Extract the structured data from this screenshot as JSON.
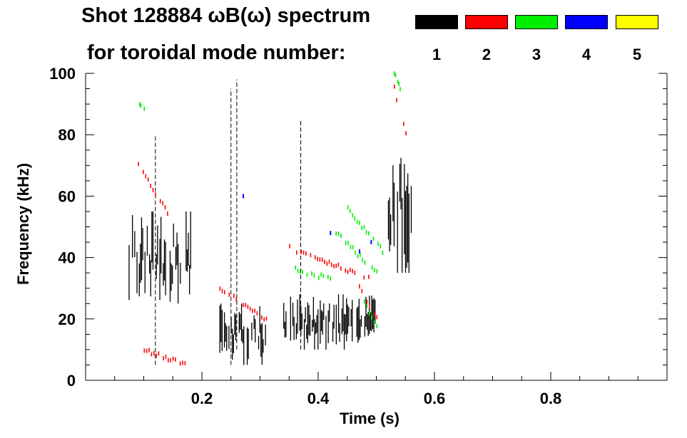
{
  "legend": {
    "title_line1": "Shot 128884 ωB(ω) spectrum",
    "title_line2": "for toroidal mode number:",
    "modes": [
      {
        "label": "1",
        "color": "#000000"
      },
      {
        "label": "2",
        "color": "#ff0000"
      },
      {
        "label": "3",
        "color": "#00ee00"
      },
      {
        "label": "4",
        "color": "#0000ff"
      },
      {
        "label": "5",
        "color": "#ffff00"
      }
    ]
  },
  "chart_data": {
    "type": "heatmap",
    "title": "Shot 128884 ωB(ω) spectrum",
    "xlabel": "Time (s)",
    "ylabel": "Frequency (kHz)",
    "xlim": [
      0.0,
      1.0
    ],
    "ylim": [
      0,
      100
    ],
    "xticks": [
      0.2,
      0.4,
      0.6,
      0.8
    ],
    "xtick_labels": [
      "0.2",
      "0.4",
      "0.6",
      "0.8"
    ],
    "yticks": [
      0,
      20,
      40,
      60,
      80,
      100
    ],
    "ytick_labels": [
      "0",
      "20",
      "40",
      "60",
      "80",
      "100"
    ],
    "series": [
      {
        "name": "n=1",
        "color": "#000000",
        "blobs": [
          {
            "t": [
              0.07,
              0.18
            ],
            "f": [
              25,
              55
            ]
          },
          {
            "t": [
              0.23,
              0.31
            ],
            "f": [
              5,
              25
            ]
          },
          {
            "t": [
              0.34,
              0.5
            ],
            "f": [
              10,
              28
            ]
          },
          {
            "t": [
              0.52,
              0.56
            ],
            "f": [
              35,
              75
            ]
          }
        ],
        "spikes": [
          {
            "t": 0.12,
            "f": [
              5,
              80
            ]
          },
          {
            "t": 0.25,
            "f": [
              5,
              95
            ]
          },
          {
            "t": 0.26,
            "f": [
              10,
              98
            ]
          },
          {
            "t": 0.37,
            "f": [
              10,
              85
            ]
          }
        ]
      },
      {
        "name": "n=2",
        "color": "#ff0000",
        "chirps": [
          {
            "t": [
              0.09,
              0.14
            ],
            "f": [
              70,
              55
            ]
          },
          {
            "t": [
              0.23,
              0.31
            ],
            "f": [
              30,
              20
            ]
          },
          {
            "t": [
              0.35,
              0.49
            ],
            "f": [
              43,
              33
            ]
          },
          {
            "t": [
              0.47,
              0.5
            ],
            "f": [
              30,
              20
            ]
          },
          {
            "t": [
              0.53,
              0.55
            ],
            "f": [
              95,
              80
            ]
          },
          {
            "t": [
              0.1,
              0.17
            ],
            "f": [
              10,
              5
            ]
          }
        ]
      },
      {
        "name": "n=3",
        "color": "#00ee00",
        "chirps": [
          {
            "t": [
              0.45,
              0.51
            ],
            "f": [
              56,
              42
            ]
          },
          {
            "t": [
              0.43,
              0.5
            ],
            "f": [
              48,
              35
            ]
          },
          {
            "t": [
              0.36,
              0.42
            ],
            "f": [
              36,
              33
            ]
          },
          {
            "t": [
              0.47,
              0.5
            ],
            "f": [
              28,
              18
            ]
          },
          {
            "t": [
              0.09,
              0.1
            ],
            "f": [
              90,
              88
            ]
          },
          {
            "t": [
              0.53,
              0.54
            ],
            "f": [
              100,
              95
            ]
          }
        ]
      },
      {
        "name": "n=4",
        "color": "#0000ff",
        "points": [
          [
            0.42,
            48
          ],
          [
            0.47,
            42
          ],
          [
            0.49,
            45
          ],
          [
            0.27,
            60
          ]
        ]
      },
      {
        "name": "n=5",
        "color": "#ffff00",
        "points": []
      }
    ]
  }
}
